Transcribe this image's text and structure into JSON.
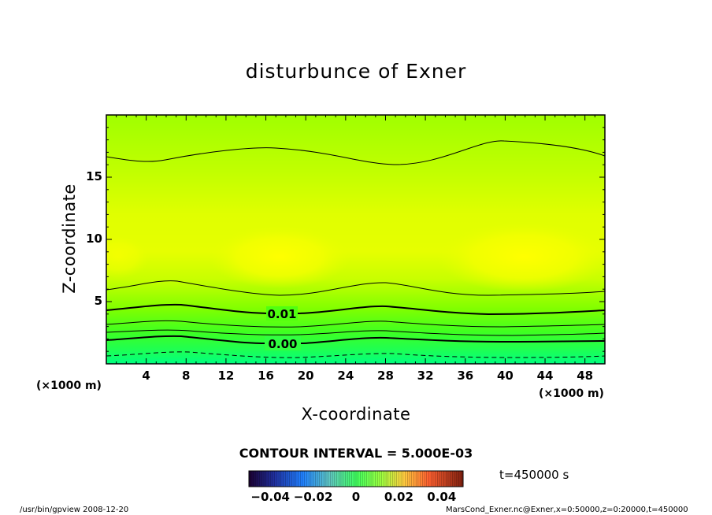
{
  "chart_data": {
    "type": "heatmap",
    "title": "disturbunce of Exner",
    "xlabel": "X-coordinate",
    "ylabel": "Z-coordinate",
    "x_unit": "(×1000 m)",
    "xlim": [
      0,
      50
    ],
    "ylim": [
      0,
      20
    ],
    "x_ticks": [
      4,
      8,
      12,
      16,
      20,
      24,
      28,
      32,
      36,
      40,
      44,
      48
    ],
    "y_ticks": [
      5,
      10,
      15
    ],
    "contour_interval": "CONTOUR INTERVAL = 5.000E-03",
    "contour_labels": [
      {
        "text": "0.01",
        "value": 0.01
      },
      {
        "text": "0.00",
        "value": 0.0
      }
    ],
    "colorbar": {
      "ticks": [
        "−0.04",
        "−0.02",
        "0",
        "0.02",
        "0.04"
      ],
      "tick_values": [
        -0.04,
        -0.02,
        0,
        0.02,
        0.04
      ],
      "range": [
        -0.05,
        0.05
      ]
    },
    "time": "t=450000 s"
  },
  "footer": {
    "left": "/usr/bin/gpview   2008-12-20",
    "right": "MarsCond_Exner.nc@Exner,x=0:50000,z=0:20000,t=450000"
  },
  "colors": {
    "low": "#00ff7f",
    "mid": "#80ff00",
    "high": "#ffff00",
    "axis": "#000000"
  }
}
